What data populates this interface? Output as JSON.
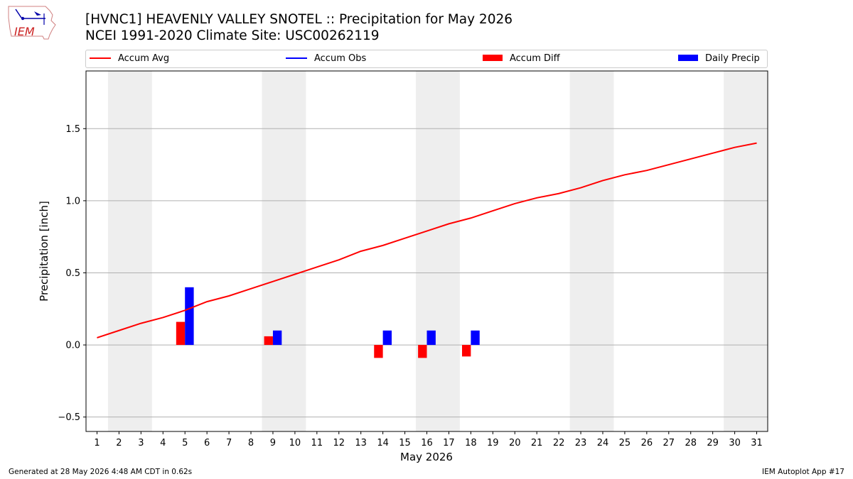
{
  "title": "[HVNC1] HEAVENLY VALLEY SNOTEL :: Precipitation for May 2026",
  "subtitle": "NCEI 1991-2020 Climate Site: USC00262119",
  "logo_text": "IEM",
  "legend": {
    "accum_avg": "Accum Avg",
    "accum_obs": "Accum Obs",
    "accum_diff": "Accum Diff",
    "daily_precip": "Daily Precip"
  },
  "colors": {
    "accum_avg": "#ff0000",
    "accum_obs": "#0000ff",
    "accum_diff": "#ff0000",
    "daily_precip": "#0000ff",
    "weekend_shade": "#eeeeee",
    "grid": "#b0b0b0"
  },
  "footer": {
    "generated": "Generated at 28 May 2026 4:48 AM CDT in 0.62s",
    "app": "IEM Autoplot App #17"
  },
  "chart_data": {
    "type": "bar",
    "xlabel": "May 2026",
    "ylabel": "Precipitation [inch]",
    "ylim": [
      -0.6,
      1.9
    ],
    "xlim": [
      0.5,
      31.5
    ],
    "yticks": [
      -0.5,
      0.0,
      0.5,
      1.0,
      1.5
    ],
    "ytick_labels": [
      "−0.5",
      "0.0",
      "0.5",
      "1.0",
      "1.5"
    ],
    "grid": "horizontal",
    "legend_position": "top",
    "days": [
      1,
      2,
      3,
      4,
      5,
      6,
      7,
      8,
      9,
      10,
      11,
      12,
      13,
      14,
      15,
      16,
      17,
      18,
      19,
      20,
      21,
      22,
      23,
      24,
      25,
      26,
      27,
      28,
      29,
      30,
      31
    ],
    "shaded_days": [
      [
        2,
        3
      ],
      [
        9,
        10
      ],
      [
        16,
        17
      ],
      [
        23,
        24
      ],
      [
        30,
        31
      ]
    ],
    "series": [
      {
        "name": "Accum Avg",
        "kind": "line",
        "values": [
          0.05,
          0.1,
          0.15,
          0.19,
          0.24,
          0.3,
          0.34,
          0.39,
          0.44,
          0.49,
          0.54,
          0.59,
          0.65,
          0.69,
          0.74,
          0.79,
          0.84,
          0.88,
          0.93,
          0.98,
          1.02,
          1.05,
          1.09,
          1.14,
          1.18,
          1.21,
          1.25,
          1.29,
          1.33,
          1.37,
          1.4
        ]
      },
      {
        "name": "Accum Obs",
        "kind": "line",
        "values": []
      },
      {
        "name": "Accum Diff",
        "kind": "bar",
        "days": [
          5,
          9,
          14,
          16,
          18
        ],
        "values": [
          0.16,
          0.06,
          -0.09,
          -0.09,
          -0.08
        ]
      },
      {
        "name": "Daily Precip",
        "kind": "bar",
        "days": [
          5,
          9,
          14,
          16,
          18
        ],
        "values": [
          0.4,
          0.1,
          0.1,
          0.1,
          0.1
        ]
      }
    ]
  }
}
